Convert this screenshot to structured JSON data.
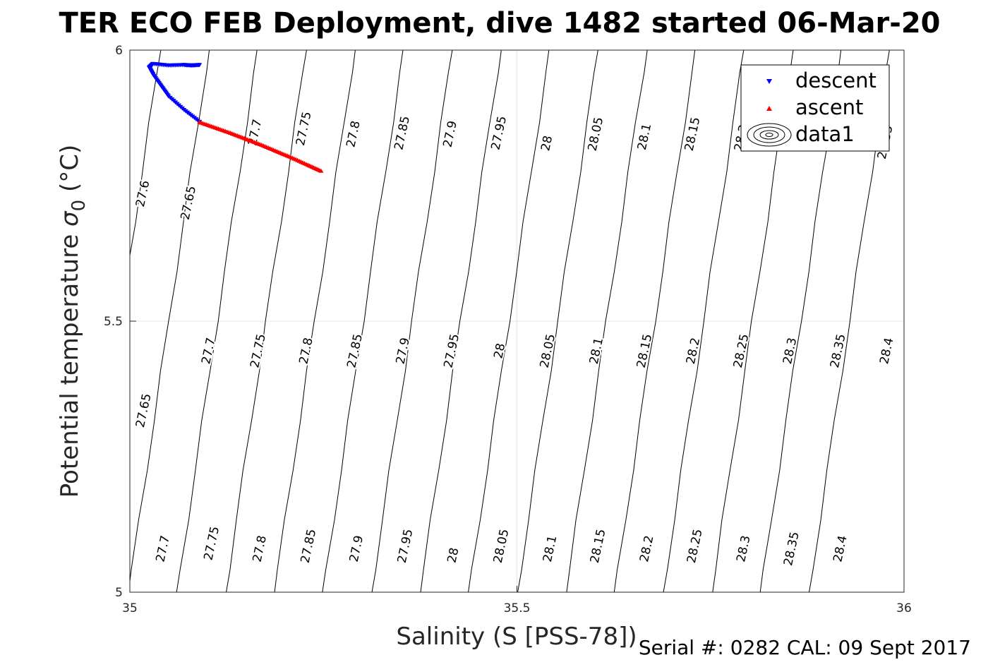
{
  "chart_data": {
    "type": "scatter",
    "title": "TER ECO FEB Deployment, dive 1482 started 06-Mar-20",
    "xlabel": "Salinity (S [PSS-78])",
    "ylabel_main": "Potential temperature ",
    "ylabel_sigma": "σ",
    "ylabel_sub": "0",
    "ylabel_unit": " (°C)",
    "xlim": [
      35,
      36
    ],
    "ylim": [
      5,
      6
    ],
    "x_ticks": [
      35,
      35.5,
      36
    ],
    "x_tick_labels": [
      "35",
      "35.5",
      "36"
    ],
    "y_ticks": [
      5,
      5.5,
      6
    ],
    "y_tick_labels": [
      "5",
      "5.5",
      "6"
    ],
    "grid": true,
    "legend_position": "top-right",
    "series": [
      {
        "name": "descent",
        "color": "#0000ff",
        "marker": "triangle-down",
        "x": [
          35.09,
          35.07,
          35.05,
          35.04,
          35.03,
          35.025,
          35.03,
          35.05,
          35.07,
          35.08,
          35.09
        ],
        "y": [
          5.868,
          5.89,
          5.915,
          5.935,
          5.955,
          5.968,
          5.975,
          5.972,
          5.973,
          5.972,
          5.973
        ]
      },
      {
        "name": "ascent",
        "color": "#ff0000",
        "marker": "triangle-up",
        "x": [
          35.09,
          35.11,
          35.13,
          35.15,
          35.17,
          35.19,
          35.21,
          35.23,
          35.247
        ],
        "y": [
          5.867,
          5.857,
          5.847,
          5.836,
          5.825,
          5.813,
          5.801,
          5.788,
          5.777
        ]
      },
      {
        "name": "data1",
        "type": "contour",
        "color": "#000000",
        "levels": [
          27.6,
          27.65,
          27.7,
          27.75,
          27.8,
          27.85,
          27.9,
          27.95,
          28,
          28.05,
          28.1,
          28.15,
          28.2,
          28.25,
          28.3,
          28.35,
          28.4
        ]
      }
    ],
    "contour_labels": [
      {
        "text": "27.6",
        "x": 35.017,
        "y": 5.735
      },
      {
        "text": "27.65",
        "x": 35.076,
        "y": 5.718
      },
      {
        "text": "27.7",
        "x": 35.162,
        "y": 5.848
      },
      {
        "text": "27.75",
        "x": 35.225,
        "y": 5.855
      },
      {
        "text": "27.8",
        "x": 35.289,
        "y": 5.845
      },
      {
        "text": "27.85",
        "x": 35.352,
        "y": 5.847
      },
      {
        "text": "27.9",
        "x": 35.414,
        "y": 5.845
      },
      {
        "text": "27.95",
        "x": 35.477,
        "y": 5.847
      },
      {
        "text": "28",
        "x": 35.539,
        "y": 5.828
      },
      {
        "text": "28.05",
        "x": 35.602,
        "y": 5.845
      },
      {
        "text": "28.1",
        "x": 35.665,
        "y": 5.84
      },
      {
        "text": "28.15",
        "x": 35.727,
        "y": 5.845
      },
      {
        "text": "28.2",
        "x": 35.79,
        "y": 5.838
      },
      {
        "text": "28.35",
        "x": 35.976,
        "y": 5.83
      },
      {
        "text": "27.65",
        "x": 35.018,
        "y": 5.335
      },
      {
        "text": "27.7",
        "x": 35.102,
        "y": 5.445
      },
      {
        "text": "27.75",
        "x": 35.166,
        "y": 5.445
      },
      {
        "text": "27.8",
        "x": 35.228,
        "y": 5.445
      },
      {
        "text": "27.85",
        "x": 35.291,
        "y": 5.445
      },
      {
        "text": "27.9",
        "x": 35.353,
        "y": 5.445
      },
      {
        "text": "27.95",
        "x": 35.416,
        "y": 5.445
      },
      {
        "text": "28",
        "x": 35.478,
        "y": 5.445
      },
      {
        "text": "28.05",
        "x": 35.54,
        "y": 5.445
      },
      {
        "text": "28.1",
        "x": 35.603,
        "y": 5.445
      },
      {
        "text": "28.15",
        "x": 35.665,
        "y": 5.445
      },
      {
        "text": "28.2",
        "x": 35.728,
        "y": 5.445
      },
      {
        "text": "28.25",
        "x": 35.79,
        "y": 5.445
      },
      {
        "text": "28.3",
        "x": 35.853,
        "y": 5.445
      },
      {
        "text": "28.35",
        "x": 35.915,
        "y": 5.445
      },
      {
        "text": "28.4",
        "x": 35.978,
        "y": 5.445
      },
      {
        "text": "27.7",
        "x": 35.043,
        "y": 5.08
      },
      {
        "text": "27.75",
        "x": 35.106,
        "y": 5.09
      },
      {
        "text": "27.8",
        "x": 35.168,
        "y": 5.08
      },
      {
        "text": "27.85",
        "x": 35.231,
        "y": 5.085
      },
      {
        "text": "27.9",
        "x": 35.293,
        "y": 5.08
      },
      {
        "text": "27.95",
        "x": 35.356,
        "y": 5.085
      },
      {
        "text": "28",
        "x": 35.418,
        "y": 5.068
      },
      {
        "text": "28.05",
        "x": 35.48,
        "y": 5.085
      },
      {
        "text": "28.1",
        "x": 35.543,
        "y": 5.08
      },
      {
        "text": "28.15",
        "x": 35.605,
        "y": 5.085
      },
      {
        "text": "28.2",
        "x": 35.668,
        "y": 5.08
      },
      {
        "text": "28.25",
        "x": 35.73,
        "y": 5.085
      },
      {
        "text": "28.3",
        "x": 35.793,
        "y": 5.08
      },
      {
        "text": "28.35",
        "x": 35.855,
        "y": 5.08
      },
      {
        "text": "28.4",
        "x": 35.918,
        "y": 5.08
      }
    ],
    "annotations": [
      {
        "text": "Serial #: 0282  CAL: 09 Sept 2017"
      }
    ]
  }
}
